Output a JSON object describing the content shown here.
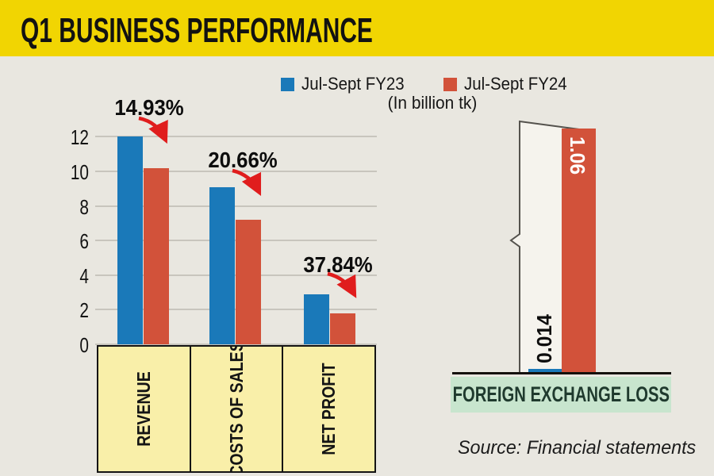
{
  "header": {
    "title": "Q1 BUSINESS PERFORMANCE",
    "band_color": "#f1d502"
  },
  "legend": {
    "items": [
      {
        "label": "Jul-Sept FY23",
        "color": "#1a79b9"
      },
      {
        "label": "Jul-Sept FY24",
        "color": "#d2523a"
      }
    ],
    "unit_note": "(In billion tk)"
  },
  "source": {
    "text": "Source: Financial statements"
  },
  "colors": {
    "background": "#e9e7e0",
    "blue": "#1a79b9",
    "red": "#d2523a",
    "arrow_red": "#e01d1d",
    "category_box": "#f9efa9",
    "green_strip": "#c8e5ce",
    "gridline": "#c8c5bd"
  },
  "chart_data": [
    {
      "type": "bar",
      "title": "Q1 BUSINESS PERFORMANCE",
      "categories": [
        "REVENUE",
        "COSTS OF SALES",
        "NET PROFIT"
      ],
      "series": [
        {
          "name": "Jul-Sept FY23",
          "color": "#1a79b9",
          "values": [
            12.0,
            9.1,
            2.9
          ]
        },
        {
          "name": "Jul-Sept FY24",
          "color": "#d2523a",
          "values": [
            10.2,
            7.2,
            1.8
          ]
        }
      ],
      "change_labels": [
        "14.93%",
        "20.66%",
        "37.84%"
      ],
      "unit": "In billion tk",
      "xlabel": "",
      "ylabel": "",
      "ylim": [
        0,
        12
      ],
      "yticks": [
        0,
        2,
        4,
        6,
        8,
        10,
        12
      ],
      "grid": true,
      "legend_position": "top"
    },
    {
      "type": "bar",
      "categories": [
        "FOREIGN EXCHANGE LOSS"
      ],
      "series": [
        {
          "name": "Jul-Sept FY23",
          "color": "#1a79b9",
          "values": [
            0.014
          ]
        },
        {
          "name": "Jul-Sept FY24",
          "color": "#d2523a",
          "values": [
            1.06
          ]
        }
      ],
      "data_labels": [
        "0.014",
        "1.06"
      ],
      "ylim": [
        0,
        1.1
      ],
      "grid": false,
      "legend_position": "none"
    }
  ]
}
